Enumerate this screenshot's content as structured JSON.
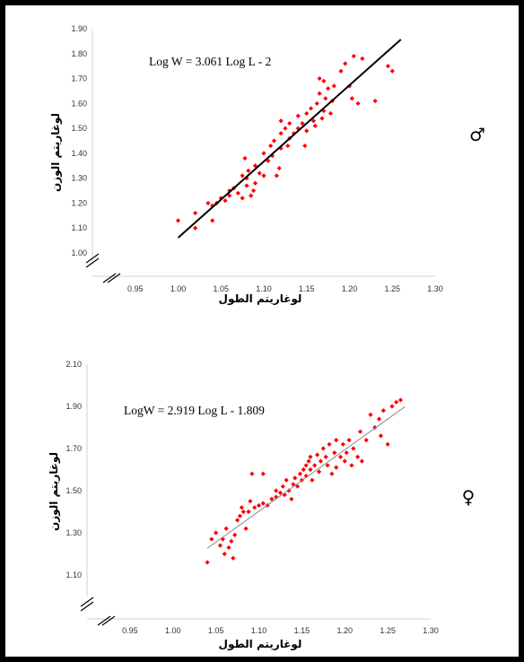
{
  "chart_data": [
    {
      "type": "scatter",
      "equation": "Log W = 3.061 Log L - 2",
      "xlabel": "لوغاريتم الطول",
      "ylabel": "لوغاريتم الوزن",
      "sex_symbol": "♂",
      "xlim": [
        0.9,
        1.3
      ],
      "ylim": [
        1.0,
        1.9
      ],
      "xticks": [
        "0.95",
        "1.00",
        "1.05",
        "1.10",
        "1.15",
        "1.20",
        "1.25",
        "1.30"
      ],
      "yticks": [
        "1.00",
        "1.10",
        "1.20",
        "1.30",
        "1.40",
        "1.50",
        "1.60",
        "1.70",
        "1.80",
        "1.90"
      ],
      "trendline": {
        "slope": 3.061,
        "intercept": -2,
        "x_range": [
          1.0,
          1.26
        ]
      },
      "colors": {
        "points": "#ff0000",
        "trendline": "#000000"
      },
      "points": [
        [
          1.0,
          1.13
        ],
        [
          1.02,
          1.1
        ],
        [
          1.02,
          1.16
        ],
        [
          1.035,
          1.2
        ],
        [
          1.04,
          1.13
        ],
        [
          1.04,
          1.19
        ],
        [
          1.045,
          1.2
        ],
        [
          1.05,
          1.22
        ],
        [
          1.055,
          1.21
        ],
        [
          1.06,
          1.23
        ],
        [
          1.06,
          1.25
        ],
        [
          1.065,
          1.26
        ],
        [
          1.07,
          1.24
        ],
        [
          1.075,
          1.22
        ],
        [
          1.075,
          1.31
        ],
        [
          1.078,
          1.38
        ],
        [
          1.08,
          1.27
        ],
        [
          1.08,
          1.3
        ],
        [
          1.082,
          1.33
        ],
        [
          1.085,
          1.23
        ],
        [
          1.088,
          1.25
        ],
        [
          1.09,
          1.28
        ],
        [
          1.09,
          1.35
        ],
        [
          1.095,
          1.32
        ],
        [
          1.1,
          1.31
        ],
        [
          1.1,
          1.4
        ],
        [
          1.105,
          1.37
        ],
        [
          1.108,
          1.43
        ],
        [
          1.11,
          1.39
        ],
        [
          1.112,
          1.45
        ],
        [
          1.115,
          1.31
        ],
        [
          1.118,
          1.34
        ],
        [
          1.12,
          1.42
        ],
        [
          1.12,
          1.48
        ],
        [
          1.12,
          1.53
        ],
        [
          1.125,
          1.5
        ],
        [
          1.128,
          1.43
        ],
        [
          1.13,
          1.46
        ],
        [
          1.135,
          1.48
        ],
        [
          1.14,
          1.5
        ],
        [
          1.14,
          1.55
        ],
        [
          1.145,
          1.52
        ],
        [
          1.148,
          1.43
        ],
        [
          1.15,
          1.49
        ],
        [
          1.15,
          1.56
        ],
        [
          1.155,
          1.58
        ],
        [
          1.158,
          1.53
        ],
        [
          1.16,
          1.51
        ],
        [
          1.162,
          1.6
        ],
        [
          1.165,
          1.64
        ],
        [
          1.165,
          1.7
        ],
        [
          1.168,
          1.54
        ],
        [
          1.17,
          1.57
        ],
        [
          1.172,
          1.62
        ],
        [
          1.175,
          1.66
        ],
        [
          1.178,
          1.56
        ],
        [
          1.18,
          1.61
        ],
        [
          1.182,
          1.67
        ],
        [
          1.19,
          1.73
        ],
        [
          1.195,
          1.76
        ],
        [
          1.2,
          1.67
        ],
        [
          1.203,
          1.62
        ],
        [
          1.205,
          1.79
        ],
        [
          1.21,
          1.6
        ],
        [
          1.215,
          1.78
        ],
        [
          1.23,
          1.61
        ],
        [
          1.245,
          1.75
        ],
        [
          1.25,
          1.73
        ],
        [
          1.17,
          1.69
        ],
        [
          1.13,
          1.52
        ]
      ]
    },
    {
      "type": "scatter",
      "equation": "LogW = 2.919 Log L - 1.809",
      "xlabel": "لوغاريتم الطول",
      "ylabel": "لوغاريتم الوزن",
      "sex_symbol": "♀",
      "xlim": [
        0.9,
        1.3
      ],
      "ylim": [
        1.0,
        2.1
      ],
      "xticks": [
        "0.95",
        "1.00",
        "1.05",
        "1.10",
        "1.15",
        "1.20",
        "1.25",
        "1.30"
      ],
      "yticks": [
        "1.10",
        "1.30",
        "1.50",
        "1.70",
        "1.90",
        "2.10"
      ],
      "trendline": {
        "slope": 2.919,
        "intercept": -1.809,
        "x_range": [
          1.04,
          1.27
        ]
      },
      "colors": {
        "points": "#ff0000",
        "trendline": "#8a8a8a"
      },
      "points": [
        [
          1.04,
          1.16
        ],
        [
          1.045,
          1.27
        ],
        [
          1.05,
          1.3
        ],
        [
          1.055,
          1.24
        ],
        [
          1.058,
          1.27
        ],
        [
          1.06,
          1.2
        ],
        [
          1.062,
          1.32
        ],
        [
          1.065,
          1.23
        ],
        [
          1.068,
          1.26
        ],
        [
          1.07,
          1.18
        ],
        [
          1.072,
          1.29
        ],
        [
          1.075,
          1.36
        ],
        [
          1.078,
          1.38
        ],
        [
          1.08,
          1.42
        ],
        [
          1.082,
          1.4
        ],
        [
          1.085,
          1.32
        ],
        [
          1.088,
          1.4
        ],
        [
          1.09,
          1.45
        ],
        [
          1.092,
          1.58
        ],
        [
          1.095,
          1.42
        ],
        [
          1.1,
          1.43
        ],
        [
          1.105,
          1.44
        ],
        [
          1.11,
          1.43
        ],
        [
          1.115,
          1.46
        ],
        [
          1.12,
          1.47
        ],
        [
          1.12,
          1.5
        ],
        [
          1.125,
          1.49
        ],
        [
          1.128,
          1.52
        ],
        [
          1.13,
          1.48
        ],
        [
          1.132,
          1.55
        ],
        [
          1.135,
          1.5
        ],
        [
          1.138,
          1.46
        ],
        [
          1.14,
          1.53
        ],
        [
          1.142,
          1.56
        ],
        [
          1.145,
          1.52
        ],
        [
          1.148,
          1.58
        ],
        [
          1.15,
          1.55
        ],
        [
          1.152,
          1.6
        ],
        [
          1.155,
          1.62
        ],
        [
          1.155,
          1.57
        ],
        [
          1.158,
          1.64
        ],
        [
          1.16,
          1.6
        ],
        [
          1.16,
          1.66
        ],
        [
          1.162,
          1.55
        ],
        [
          1.165,
          1.62
        ],
        [
          1.168,
          1.67
        ],
        [
          1.17,
          1.59
        ],
        [
          1.172,
          1.64
        ],
        [
          1.175,
          1.7
        ],
        [
          1.178,
          1.66
        ],
        [
          1.18,
          1.62
        ],
        [
          1.182,
          1.72
        ],
        [
          1.185,
          1.58
        ],
        [
          1.188,
          1.68
        ],
        [
          1.19,
          1.61
        ],
        [
          1.19,
          1.74
        ],
        [
          1.195,
          1.66
        ],
        [
          1.198,
          1.72
        ],
        [
          1.2,
          1.64
        ],
        [
          1.202,
          1.68
        ],
        [
          1.205,
          1.74
        ],
        [
          1.208,
          1.62
        ],
        [
          1.21,
          1.7
        ],
        [
          1.215,
          1.66
        ],
        [
          1.218,
          1.78
        ],
        [
          1.22,
          1.64
        ],
        [
          1.225,
          1.74
        ],
        [
          1.23,
          1.86
        ],
        [
          1.235,
          1.8
        ],
        [
          1.24,
          1.84
        ],
        [
          1.242,
          1.76
        ],
        [
          1.245,
          1.88
        ],
        [
          1.25,
          1.72
        ],
        [
          1.255,
          1.9
        ],
        [
          1.26,
          1.92
        ],
        [
          1.265,
          1.93
        ],
        [
          1.105,
          1.58
        ]
      ]
    }
  ]
}
